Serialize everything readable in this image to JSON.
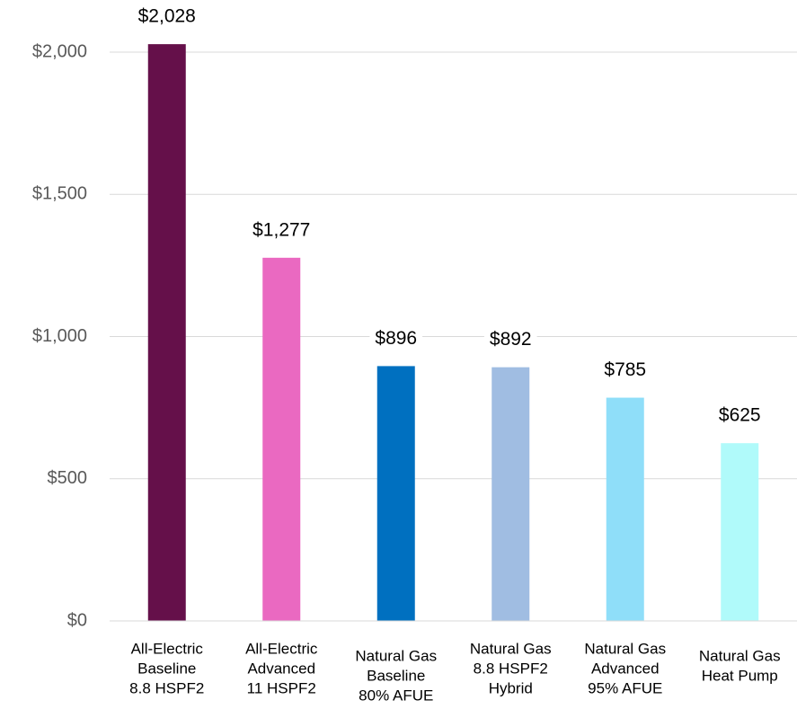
{
  "chart_data": {
    "type": "bar",
    "categories": [
      [
        "All-Electric",
        "Baseline",
        "8.8 HSPF2"
      ],
      [
        "All-Electric",
        "Advanced",
        "11 HSPF2"
      ],
      [
        "Natural Gas",
        "Baseline",
        "80% AFUE"
      ],
      [
        "Natural Gas",
        "8.8 HSPF2",
        "Hybrid"
      ],
      [
        "Natural Gas",
        "Advanced",
        "95% AFUE"
      ],
      [
        "Natural Gas",
        "Heat Pump"
      ]
    ],
    "values": [
      2028,
      1277,
      896,
      892,
      785,
      625
    ],
    "value_labels": [
      "$2,028",
      "$1,277",
      "$896",
      "$892",
      "$785",
      "$625"
    ],
    "colors": [
      "#65104a",
      "#ea69c1",
      "#0070c0",
      "#a0bde2",
      "#8fdef9",
      "#b0fafa"
    ],
    "ylim": [
      0,
      2000
    ],
    "yticks": [
      {
        "value": 0,
        "label": "$0"
      },
      {
        "value": 500,
        "label": "$500"
      },
      {
        "value": 1000,
        "label": "$1,000"
      },
      {
        "value": 1500,
        "label": "$1,500"
      },
      {
        "value": 2000,
        "label": "$2,000"
      }
    ],
    "grid": true
  }
}
